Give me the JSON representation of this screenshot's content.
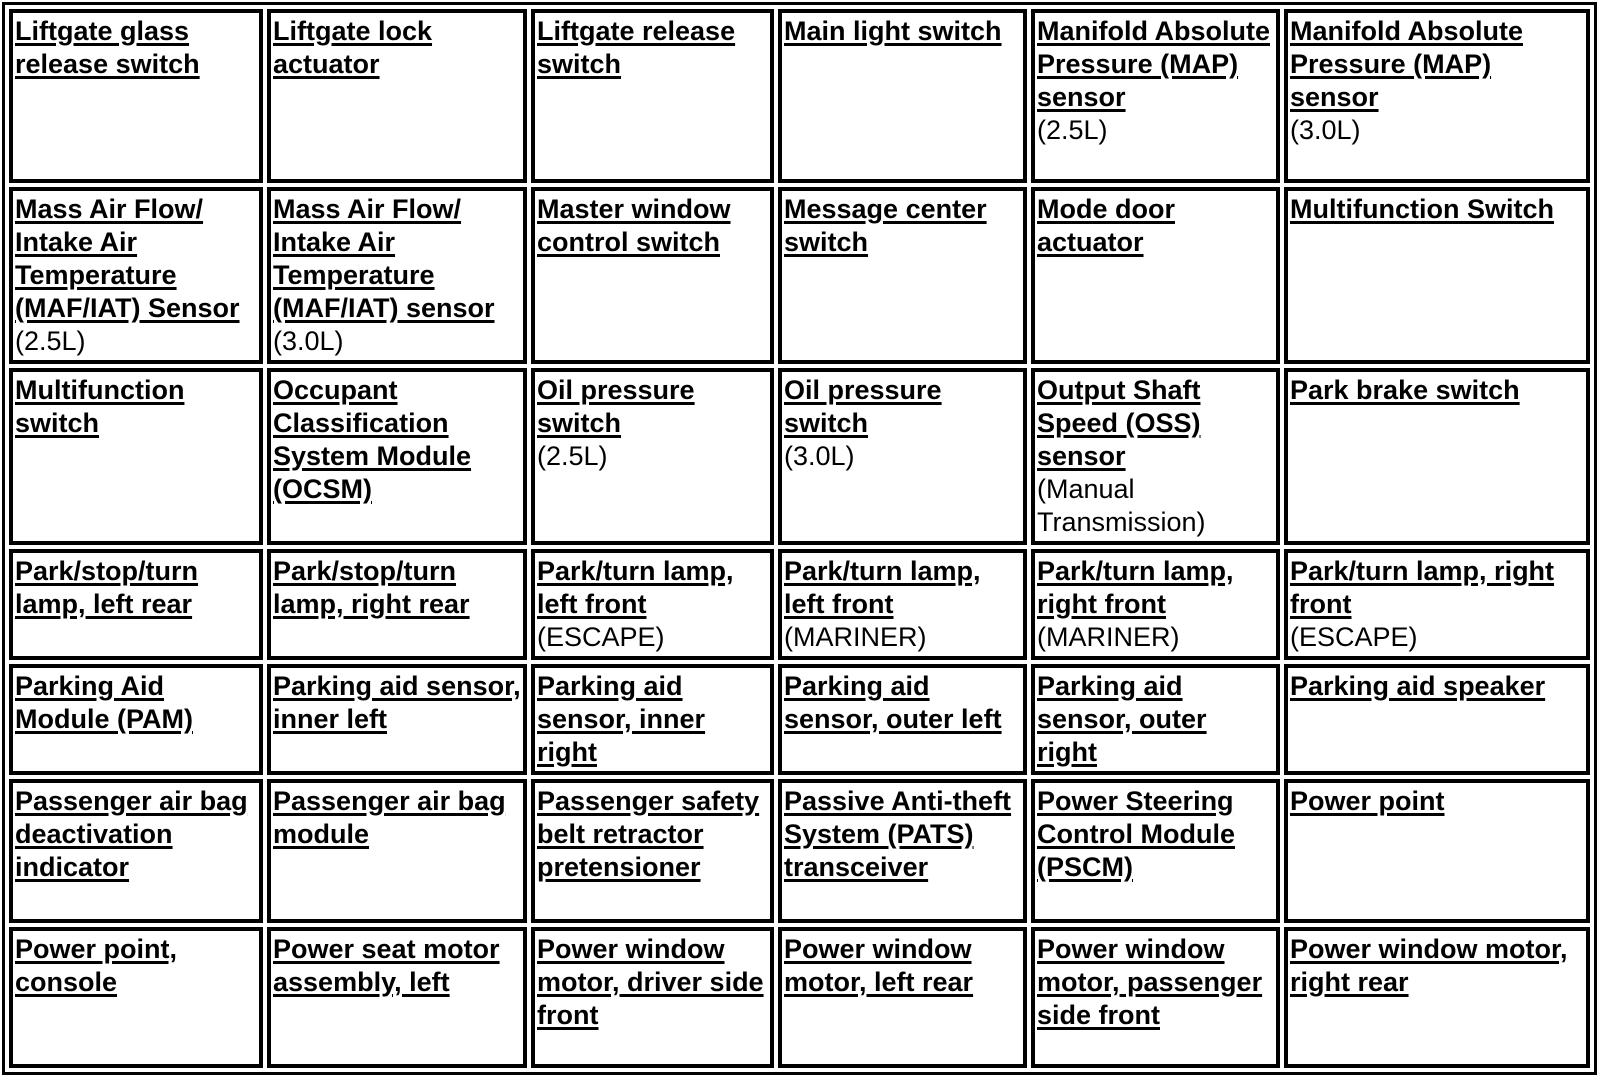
{
  "rows": [
    [
      {
        "link": "Liftgate glass release switch"
      },
      {
        "link": "Liftgate lock actuator"
      },
      {
        "link": "Liftgate release switch"
      },
      {
        "link": "Main light switch"
      },
      {
        "link": "Manifold Absolute Pressure (MAP) sensor",
        "note": "(2.5L)"
      },
      {
        "link": "Manifold Absolute Pressure (MAP) sensor",
        "note": "(3.0L)"
      }
    ],
    [
      {
        "link": "Mass Air Flow/ Intake Air Temperature (MAF/IAT) Sensor",
        "note": "(2.5L)"
      },
      {
        "link": "Mass Air Flow/ Intake Air Temperature (MAF/IAT) sensor",
        "note": "(3.0L)"
      },
      {
        "link": "Master window control switch"
      },
      {
        "link": "Message center switch"
      },
      {
        "link": "Mode door actuator"
      },
      {
        "link": "Multifunction Switch"
      }
    ],
    [
      {
        "link": "Multifunction switch"
      },
      {
        "link": "Occupant Classification System Module (OCSM)"
      },
      {
        "link": "Oil pressure switch",
        "note": "(2.5L)"
      },
      {
        "link": "Oil pressure switch",
        "note": "(3.0L)"
      },
      {
        "link": "Output Shaft Speed (OSS) sensor",
        "note": "(Manual Transmission)"
      },
      {
        "link": "Park brake switch"
      }
    ],
    [
      {
        "link": "Park/stop/turn lamp, left rear"
      },
      {
        "link": "Park/stop/turn lamp, right rear"
      },
      {
        "link": "Park/turn lamp, left front",
        "note": "(ESCAPE)"
      },
      {
        "link": "Park/turn lamp, left front",
        "note": "(MARINER)"
      },
      {
        "link": "Park/turn lamp, right front",
        "note": "(MARINER)"
      },
      {
        "link": "Park/turn lamp, right front",
        "note": "(ESCAPE)"
      }
    ],
    [
      {
        "link": "Parking Aid Module (PAM)"
      },
      {
        "link": "Parking aid sensor, inner left"
      },
      {
        "link": "Parking aid sensor, inner right"
      },
      {
        "link": "Parking aid sensor, outer left"
      },
      {
        "link": "Parking aid sensor, outer right"
      },
      {
        "link": "Parking aid speaker"
      }
    ],
    [
      {
        "link": "Passenger air bag deactivation indicator"
      },
      {
        "link": "Passenger air bag module"
      },
      {
        "link": "Passenger safety belt retractor pretensioner"
      },
      {
        "link": "Passive Anti-theft System (PATS) transceiver"
      },
      {
        "link": "Power Steering Control Module (PSCM)"
      },
      {
        "link": "Power point"
      }
    ],
    [
      {
        "link": "Power point, console"
      },
      {
        "link": "Power seat motor assembly, left"
      },
      {
        "link": "Power window motor, driver side front"
      },
      {
        "link": "Power window motor, left rear"
      },
      {
        "link": "Power window motor, passenger side front"
      },
      {
        "link": "Power window motor, right rear"
      }
    ]
  ]
}
